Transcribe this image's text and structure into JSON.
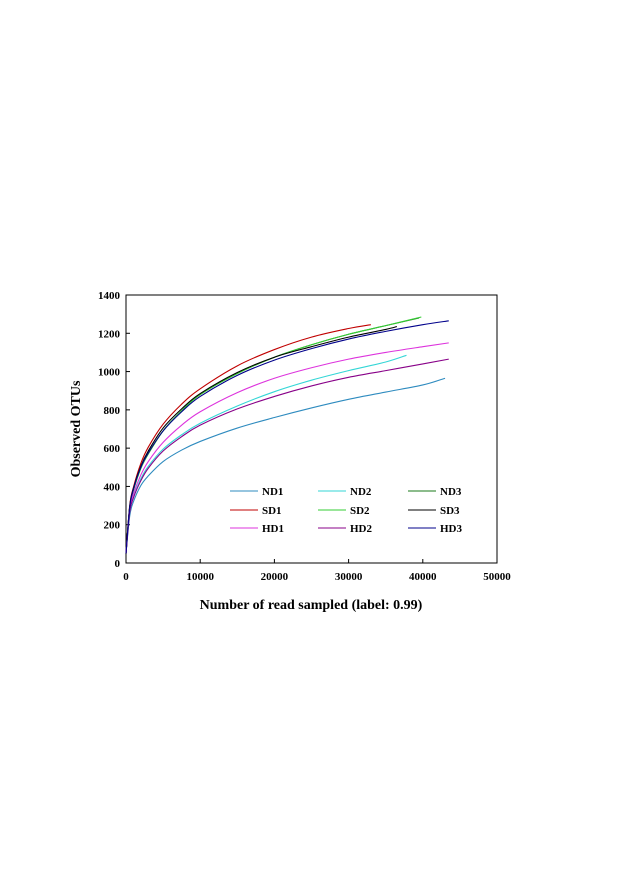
{
  "chart_data": {
    "type": "line",
    "title": "",
    "xlabel": "Number of read sampled (label: 0.99)",
    "ylabel": "Observed OTUs",
    "xlim": [
      0,
      50000
    ],
    "ylim": [
      0,
      1400
    ],
    "xticks": [
      0,
      10000,
      20000,
      30000,
      40000,
      50000
    ],
    "yticks": [
      0,
      200,
      400,
      600,
      800,
      1000,
      1200,
      1400
    ],
    "xtick_labels": [
      "0",
      "10000",
      "20000",
      "30000",
      "40000",
      "50000"
    ],
    "ytick_labels": [
      "0",
      "200",
      "400",
      "600",
      "800",
      "1000",
      "1200",
      "1400"
    ],
    "grid": false,
    "legend": {
      "placement": "bottom-right",
      "columns": 3
    },
    "series": [
      {
        "name": "ND1",
        "color": "#2e8bbf",
        "points": [
          [
            0,
            50
          ],
          [
            500,
            245
          ],
          [
            1000,
            320
          ],
          [
            2000,
            405
          ],
          [
            3000,
            455
          ],
          [
            5000,
            530
          ],
          [
            7500,
            590
          ],
          [
            10000,
            635
          ],
          [
            15000,
            705
          ],
          [
            20000,
            760
          ],
          [
            25000,
            810
          ],
          [
            30000,
            855
          ],
          [
            35000,
            893
          ],
          [
            40000,
            930
          ],
          [
            43000,
            965
          ]
        ]
      },
      {
        "name": "ND2",
        "color": "#33d6d6",
        "points": [
          [
            0,
            50
          ],
          [
            500,
            270
          ],
          [
            1000,
            345
          ],
          [
            2000,
            440
          ],
          [
            3000,
            505
          ],
          [
            5000,
            595
          ],
          [
            7500,
            670
          ],
          [
            10000,
            730
          ],
          [
            15000,
            820
          ],
          [
            20000,
            895
          ],
          [
            25000,
            955
          ],
          [
            30000,
            1005
          ],
          [
            35000,
            1050
          ],
          [
            37800,
            1085
          ]
        ]
      },
      {
        "name": "ND3",
        "color": "#1a7a1a",
        "points": [
          [
            0,
            50
          ],
          [
            500,
            290
          ],
          [
            1000,
            380
          ],
          [
            2000,
            495
          ],
          [
            3000,
            570
          ],
          [
            5000,
            690
          ],
          [
            7500,
            795
          ],
          [
            10000,
            880
          ],
          [
            15000,
            990
          ],
          [
            20000,
            1075
          ],
          [
            25000,
            1140
          ],
          [
            30000,
            1195
          ],
          [
            35000,
            1240
          ],
          [
            39500,
            1280
          ]
        ]
      },
      {
        "name": "SD1",
        "color": "#c00000",
        "points": [
          [
            0,
            50
          ],
          [
            500,
            300
          ],
          [
            1000,
            395
          ],
          [
            2000,
            520
          ],
          [
            3000,
            605
          ],
          [
            5000,
            725
          ],
          [
            7500,
            830
          ],
          [
            10000,
            910
          ],
          [
            15000,
            1030
          ],
          [
            20000,
            1115
          ],
          [
            25000,
            1180
          ],
          [
            30000,
            1225
          ],
          [
            33000,
            1245
          ]
        ]
      },
      {
        "name": "SD2",
        "color": "#33cc33",
        "points": [
          [
            0,
            50
          ],
          [
            500,
            290
          ],
          [
            1000,
            380
          ],
          [
            2000,
            495
          ],
          [
            3000,
            570
          ],
          [
            5000,
            690
          ],
          [
            7500,
            795
          ],
          [
            10000,
            880
          ],
          [
            15000,
            990
          ],
          [
            20000,
            1075
          ],
          [
            25000,
            1140
          ],
          [
            30000,
            1195
          ],
          [
            35000,
            1240
          ],
          [
            39800,
            1285
          ]
        ]
      },
      {
        "name": "SD3",
        "color": "#000000",
        "points": [
          [
            0,
            50
          ],
          [
            500,
            295
          ],
          [
            1000,
            390
          ],
          [
            2000,
            505
          ],
          [
            3000,
            585
          ],
          [
            5000,
            705
          ],
          [
            7500,
            805
          ],
          [
            10000,
            885
          ],
          [
            15000,
            995
          ],
          [
            20000,
            1075
          ],
          [
            25000,
            1130
          ],
          [
            30000,
            1180
          ],
          [
            35000,
            1220
          ],
          [
            36500,
            1235
          ]
        ]
      },
      {
        "name": "HD1",
        "color": "#dd33dd",
        "points": [
          [
            0,
            50
          ],
          [
            500,
            280
          ],
          [
            1000,
            360
          ],
          [
            2000,
            460
          ],
          [
            3000,
            530
          ],
          [
            5000,
            630
          ],
          [
            7500,
            720
          ],
          [
            10000,
            790
          ],
          [
            15000,
            890
          ],
          [
            20000,
            965
          ],
          [
            25000,
            1020
          ],
          [
            30000,
            1065
          ],
          [
            35000,
            1100
          ],
          [
            40000,
            1130
          ],
          [
            43500,
            1150
          ]
        ]
      },
      {
        "name": "HD2",
        "color": "#880088",
        "points": [
          [
            0,
            50
          ],
          [
            500,
            265
          ],
          [
            1000,
            340
          ],
          [
            2000,
            430
          ],
          [
            3000,
            495
          ],
          [
            5000,
            585
          ],
          [
            7500,
            660
          ],
          [
            10000,
            720
          ],
          [
            15000,
            805
          ],
          [
            20000,
            870
          ],
          [
            25000,
            925
          ],
          [
            30000,
            970
          ],
          [
            35000,
            1005
          ],
          [
            40000,
            1040
          ],
          [
            43500,
            1065
          ]
        ]
      },
      {
        "name": "HD3",
        "color": "#00008b",
        "points": [
          [
            0,
            50
          ],
          [
            500,
            290
          ],
          [
            1000,
            385
          ],
          [
            2000,
            500
          ],
          [
            3000,
            575
          ],
          [
            5000,
            690
          ],
          [
            7500,
            790
          ],
          [
            10000,
            870
          ],
          [
            15000,
            980
          ],
          [
            20000,
            1060
          ],
          [
            25000,
            1120
          ],
          [
            30000,
            1170
          ],
          [
            35000,
            1210
          ],
          [
            40000,
            1245
          ],
          [
            43500,
            1265
          ]
        ]
      }
    ]
  }
}
